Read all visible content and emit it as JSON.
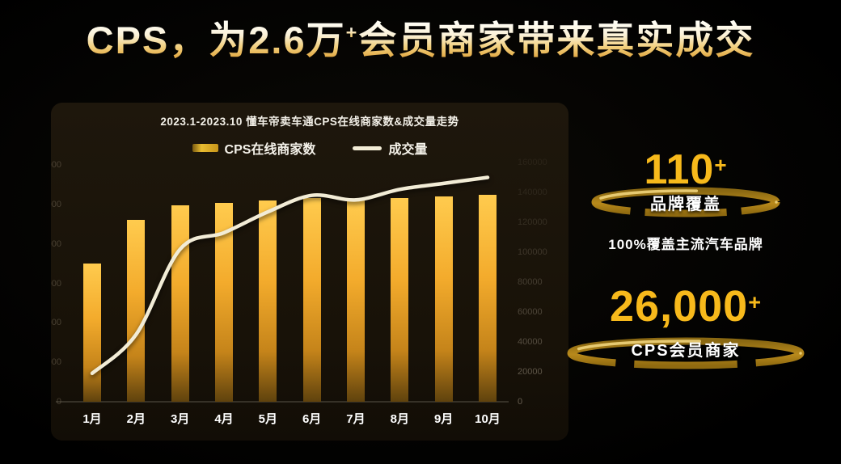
{
  "title": {
    "prefix": "CPS，为2.6万",
    "sup": "+",
    "suffix": "会员商家带来真实成交"
  },
  "chart_data": {
    "type": "bar",
    "title": "2023.1-2023.10 懂车帝卖车通CPS在线商家数&成交量走势",
    "categories": [
      "1月",
      "2月",
      "3月",
      "4月",
      "5月",
      "6月",
      "7月",
      "8月",
      "9月",
      "10月"
    ],
    "series": [
      {
        "name": "CPS在线商家数",
        "type": "bar",
        "axis": "left",
        "color": "#F3AB2C",
        "values": [
          17500,
          23000,
          24900,
          25200,
          25500,
          25800,
          25600,
          25800,
          26000,
          26200
        ]
      },
      {
        "name": "成交量",
        "type": "line",
        "axis": "right",
        "color": "#F2ECD6",
        "values": [
          19000,
          45000,
          102000,
          113000,
          127000,
          138000,
          135000,
          142000,
          146000,
          150000
        ]
      }
    ],
    "y_left": {
      "min": 0,
      "max": 30000,
      "tick_step": 5000
    },
    "y_right": {
      "min": 0,
      "max": 160000,
      "tick_step": 20000
    },
    "legend_position": "top",
    "grid": false
  },
  "stats": [
    {
      "value": "110",
      "plus": "+",
      "label": "品牌覆盖"
    },
    {
      "value": "26,000",
      "plus": "+",
      "label": "CPS会员商家"
    }
  ],
  "subnote": "100%覆盖主流汽车品牌",
  "colors": {
    "gold_accent": "#F7B91B",
    "bar_gold": "#F3AB2C",
    "line_cream": "#F2ECD6",
    "panel_bg": "#181208",
    "ring_gold": "#C8951A"
  }
}
